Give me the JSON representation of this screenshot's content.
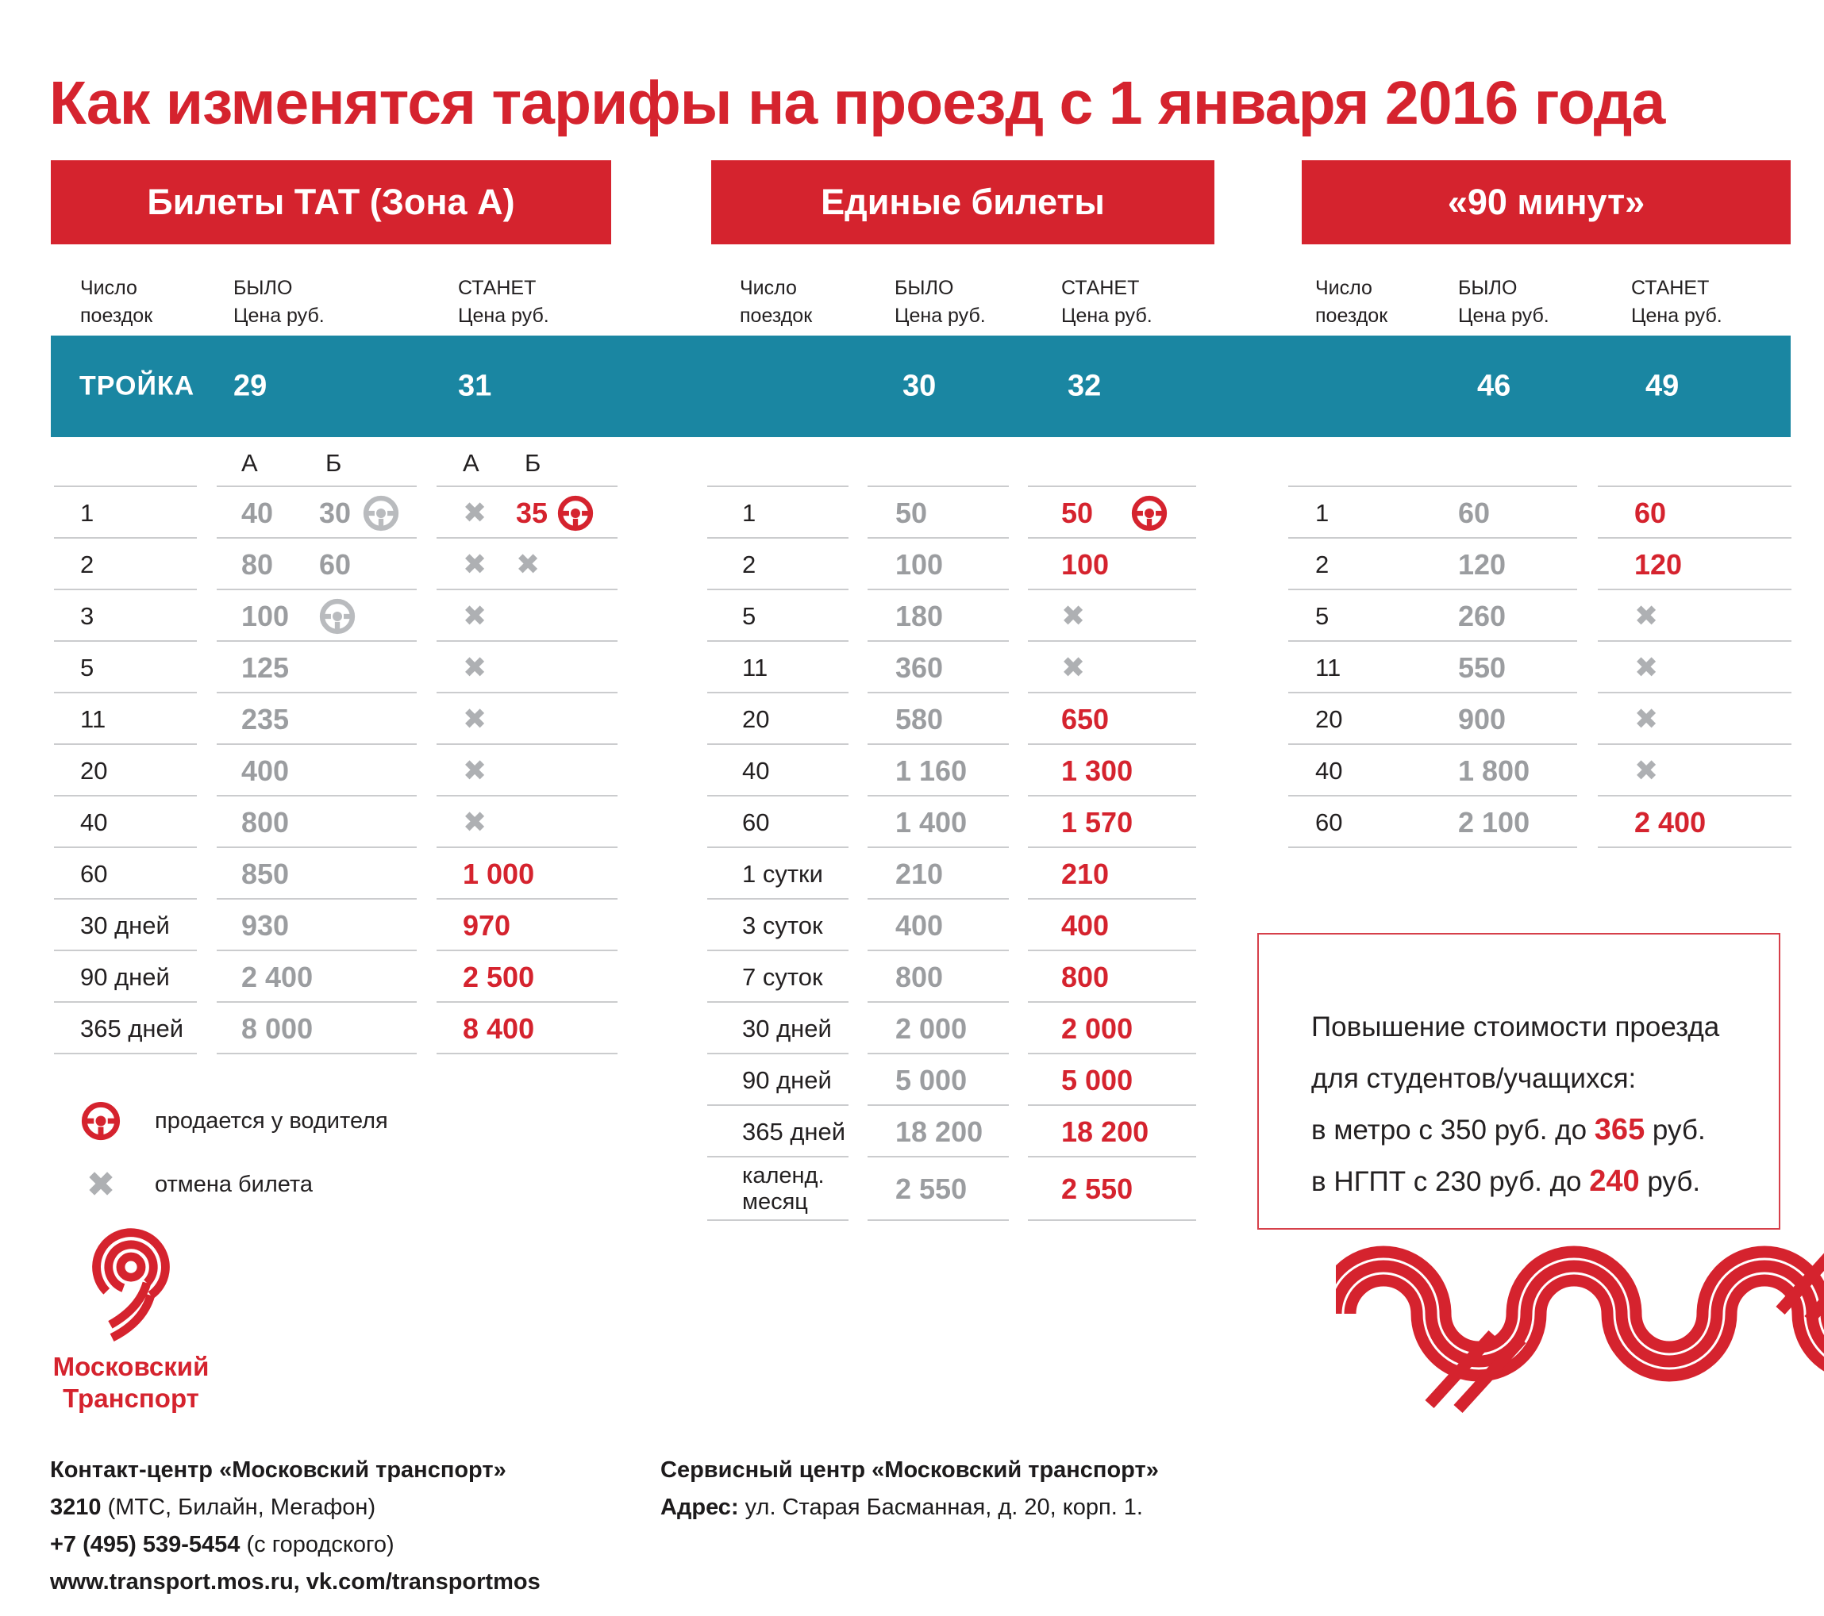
{
  "title": "Как изменятся тарифы на проезд с 1 января 2016 года",
  "colors": {
    "accent_red": "#d5232e",
    "troyka_teal": "#1a86a2",
    "value_gray": "#9b9da0",
    "line_gray": "#cbccce"
  },
  "icons": {
    "cancel_glyph": "✖",
    "wheel_name": "steering-wheel-icon",
    "cancel_name": "cancel-icon"
  },
  "table_header": {
    "trips_l1": "Число",
    "trips_l2": "поездок",
    "was_l1": "БЫЛО",
    "was_l2": "Цена руб.",
    "will_l1": "СТАНЕТ",
    "will_l2": "Цена руб."
  },
  "troyka": {
    "label": "ТРОЙКА",
    "values": {
      "tat_was": "29",
      "tat_will": "31",
      "united_was": "30",
      "united_will": "32",
      "min90_was": "46",
      "min90_will": "49"
    }
  },
  "sections": [
    {
      "title": "Билеты ТАТ (Зона А)",
      "zone_a": "А",
      "zone_b": "Б",
      "rows": [
        {
          "trips": "1",
          "was_a": "40",
          "was_b": "30",
          "was_b_icon": "wheel",
          "will_b": "35",
          "will_b_icon": "wheel"
        },
        {
          "trips": "2",
          "was_a": "80",
          "was_b": "60",
          "will_a_x": true,
          "will_b_x": true
        },
        {
          "trips": "3",
          "was": "100",
          "was_icon": "wheel",
          "will_x": true
        },
        {
          "trips": "5",
          "was": "125",
          "will_x": true
        },
        {
          "trips": "11",
          "was": "235",
          "will_x": true
        },
        {
          "trips": "20",
          "was": "400",
          "will_x": true
        },
        {
          "trips": "40",
          "was": "800",
          "will_x": true
        },
        {
          "trips": "60",
          "was": "850",
          "will": "1 000"
        },
        {
          "trips": "30 дней",
          "was": "930",
          "will": "970"
        },
        {
          "trips": "90 дней",
          "was": "2 400",
          "will": "2 500"
        },
        {
          "trips": "365 дней",
          "was": "8 000",
          "will": "8 400"
        }
      ]
    },
    {
      "title": "Единые билеты",
      "rows": [
        {
          "trips": "1",
          "was": "50",
          "will": "50",
          "will_icon": "wheel"
        },
        {
          "trips": "2",
          "was": "100",
          "will": "100"
        },
        {
          "trips": "5",
          "was": "180",
          "will_x": true
        },
        {
          "trips": "11",
          "was": "360",
          "will_x": true
        },
        {
          "trips": "20",
          "was": "580",
          "will": "650"
        },
        {
          "trips": "40",
          "was": "1 160",
          "will": "1 300"
        },
        {
          "trips": "60",
          "was": "1 400",
          "will": "1 570"
        },
        {
          "trips": "1 сутки",
          "was": "210",
          "will": "210"
        },
        {
          "trips": "3 суток",
          "was": "400",
          "will": "400"
        },
        {
          "trips": "7 суток",
          "was": "800",
          "will": "800"
        },
        {
          "trips": "30 дней",
          "was": "2 000",
          "will": "2 000"
        },
        {
          "trips": "90 дней",
          "was": "5 000",
          "will": "5 000"
        },
        {
          "trips": "365 дней",
          "was": "18 200",
          "will": "18 200"
        },
        {
          "trips": "календ. месяц",
          "trips_l1": "календ.",
          "trips_l2": "месяц",
          "was": "2 550",
          "will": "2 550"
        }
      ]
    },
    {
      "title": "«90 минут»",
      "rows": [
        {
          "trips": "1",
          "was": "60",
          "will": "60"
        },
        {
          "trips": "2",
          "was": "120",
          "will": "120"
        },
        {
          "trips": "5",
          "was": "260",
          "will_x": true
        },
        {
          "trips": "11",
          "was": "550",
          "will_x": true
        },
        {
          "trips": "20",
          "was": "900",
          "will_x": true
        },
        {
          "trips": "40",
          "was": "1 800",
          "will_x": true
        },
        {
          "trips": "60",
          "was": "2 100",
          "will": "2 400"
        }
      ]
    }
  ],
  "legend": [
    {
      "icon": "steering-wheel",
      "text": "продается у водителя"
    },
    {
      "icon": "cancel-x",
      "text": "отмена билета"
    }
  ],
  "students_note": {
    "line1": "Повышение стоимости проезда",
    "line2": "для студентов/учащихся:",
    "line3_pre": "в метро с 350 руб. до ",
    "line3_value": "365",
    "line3_post": " руб.",
    "line4_pre": "в НГПТ с 230 руб. до ",
    "line4_value": "240",
    "line4_post": " руб."
  },
  "logo": {
    "line1": "Московский",
    "line2": "Транспорт"
  },
  "contacts": {
    "left": {
      "title": "Контакт-центр «Московский транспорт»",
      "phone_short": "3210",
      "phone_short_note": " (МТС, Билайн, Мегафон)",
      "phone": "+7 (495) 539-5454",
      "phone_note": " (с городского)",
      "web": "www.transport.mos.ru, vk.com/transportmos"
    },
    "right": {
      "title": "Сервисный центр «Московский транспорт»",
      "address_label": "Адрес:",
      "address": " ул. Старая Басманная,  д. 20, корп. 1."
    }
  }
}
